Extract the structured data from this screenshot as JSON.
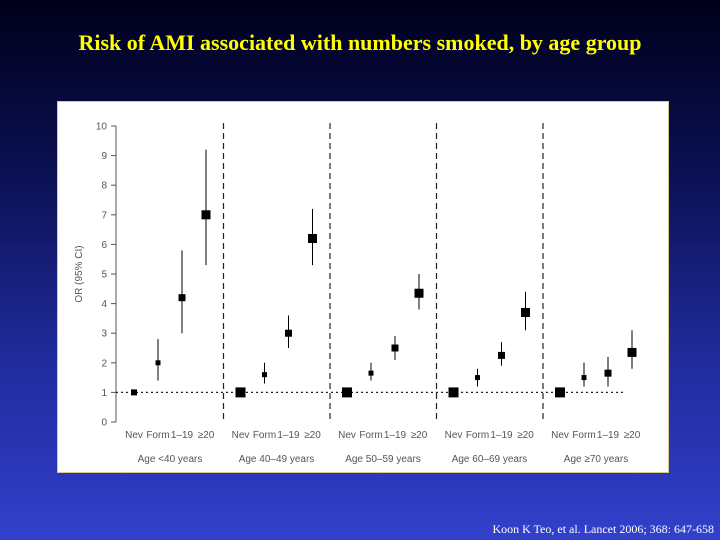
{
  "slide": {
    "title": "Risk of AMI associated with numbers smoked, by age group",
    "citation": "Koon K Teo, et al. Lancet 2006; 368: 647-658"
  },
  "colors": {
    "title": "#ffff00",
    "marker": "#000000",
    "axis": "#555555",
    "panel_border": "#d9c98a"
  },
  "chart_data": {
    "type": "scatter",
    "ylabel": "OR (95% CI)",
    "ylim": [
      0,
      10
    ],
    "yticks": [
      0,
      1,
      2,
      3,
      4,
      5,
      6,
      7,
      8,
      9,
      10
    ],
    "reference_line": 1,
    "categories": [
      "Nev",
      "Form",
      "1–19",
      "≥20"
    ],
    "groups": [
      {
        "label": "Age <40 years",
        "points": [
          {
            "category": "Nev",
            "or": 1.0,
            "ci": null
          },
          {
            "category": "Form",
            "or": 2.0,
            "ci": [
              1.4,
              2.8
            ]
          },
          {
            "category": "1–19",
            "or": 4.2,
            "ci": [
              3.0,
              5.8
            ]
          },
          {
            "category": "≥20",
            "or": 7.0,
            "ci": [
              5.3,
              9.2
            ]
          }
        ]
      },
      {
        "label": "Age 40–49 years",
        "points": [
          {
            "category": "Nev",
            "or": 1.0,
            "ci": null
          },
          {
            "category": "Form",
            "or": 1.6,
            "ci": [
              1.3,
              2.0
            ]
          },
          {
            "category": "1–19",
            "or": 3.0,
            "ci": [
              2.5,
              3.6
            ]
          },
          {
            "category": "≥20",
            "or": 6.2,
            "ci": [
              5.3,
              7.2
            ]
          }
        ]
      },
      {
        "label": "Age 50–59 years",
        "points": [
          {
            "category": "Nev",
            "or": 1.0,
            "ci": null
          },
          {
            "category": "Form",
            "or": 1.65,
            "ci": [
              1.4,
              2.0
            ]
          },
          {
            "category": "1–19",
            "or": 2.5,
            "ci": [
              2.1,
              2.9
            ]
          },
          {
            "category": "≥20",
            "or": 4.35,
            "ci": [
              3.8,
              5.0
            ]
          }
        ]
      },
      {
        "label": "Age 60–69 years",
        "points": [
          {
            "category": "Nev",
            "or": 1.0,
            "ci": null
          },
          {
            "category": "Form",
            "or": 1.5,
            "ci": [
              1.2,
              1.8
            ]
          },
          {
            "category": "1–19",
            "or": 2.25,
            "ci": [
              1.9,
              2.7
            ]
          },
          {
            "category": "≥20",
            "or": 3.7,
            "ci": [
              3.1,
              4.4
            ]
          }
        ]
      },
      {
        "label": "Age ≥70 years",
        "points": [
          {
            "category": "Nev",
            "or": 1.0,
            "ci": null
          },
          {
            "category": "Form",
            "or": 1.5,
            "ci": [
              1.2,
              2.0
            ]
          },
          {
            "category": "1–19",
            "or": 1.65,
            "ci": [
              1.2,
              2.2
            ]
          },
          {
            "category": "≥20",
            "or": 2.35,
            "ci": [
              1.8,
              3.1
            ]
          }
        ]
      }
    ]
  }
}
